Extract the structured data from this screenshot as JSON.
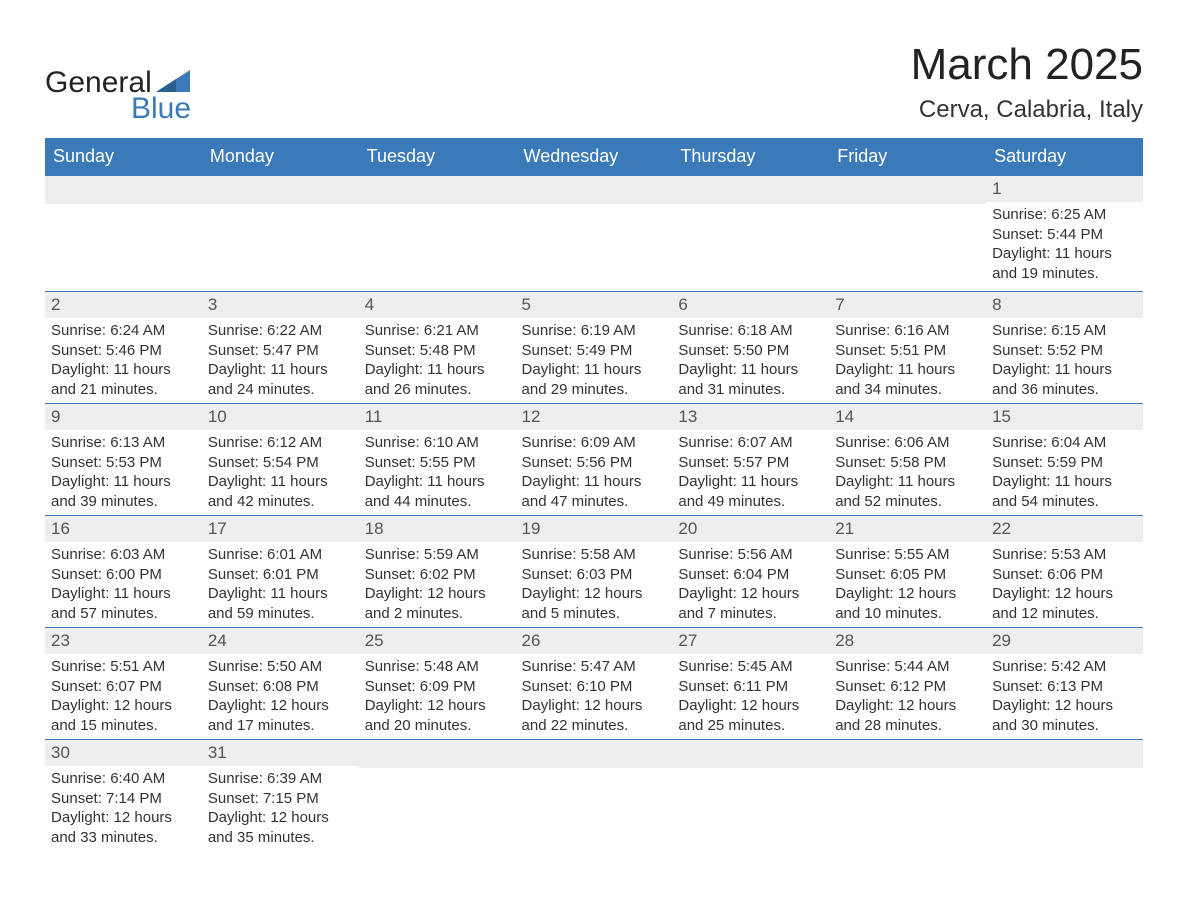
{
  "logo": {
    "text1": "General",
    "text2": "Blue"
  },
  "title": "March 2025",
  "location": "Cerva, Calabria, Italy",
  "colors": {
    "header_bg": "#3b7ab8",
    "header_text": "#ffffff",
    "daynum_bg": "#eeeeee",
    "row_divider": "#3b7ab8",
    "body_text": "#333333",
    "title_text": "#222222",
    "logo_blue": "#3b7ab8"
  },
  "fonts": {
    "title_size_pt": 33,
    "location_size_pt": 18,
    "header_size_pt": 14,
    "body_size_pt": 11
  },
  "day_headers": [
    "Sunday",
    "Monday",
    "Tuesday",
    "Wednesday",
    "Thursday",
    "Friday",
    "Saturday"
  ],
  "weeks": [
    [
      {
        "empty": true
      },
      {
        "empty": true
      },
      {
        "empty": true
      },
      {
        "empty": true
      },
      {
        "empty": true
      },
      {
        "empty": true
      },
      {
        "num": "1",
        "sunrise": "Sunrise: 6:25 AM",
        "sunset": "Sunset: 5:44 PM",
        "daylight1": "Daylight: 11 hours",
        "daylight2": "and 19 minutes."
      }
    ],
    [
      {
        "num": "2",
        "sunrise": "Sunrise: 6:24 AM",
        "sunset": "Sunset: 5:46 PM",
        "daylight1": "Daylight: 11 hours",
        "daylight2": "and 21 minutes."
      },
      {
        "num": "3",
        "sunrise": "Sunrise: 6:22 AM",
        "sunset": "Sunset: 5:47 PM",
        "daylight1": "Daylight: 11 hours",
        "daylight2": "and 24 minutes."
      },
      {
        "num": "4",
        "sunrise": "Sunrise: 6:21 AM",
        "sunset": "Sunset: 5:48 PM",
        "daylight1": "Daylight: 11 hours",
        "daylight2": "and 26 minutes."
      },
      {
        "num": "5",
        "sunrise": "Sunrise: 6:19 AM",
        "sunset": "Sunset: 5:49 PM",
        "daylight1": "Daylight: 11 hours",
        "daylight2": "and 29 minutes."
      },
      {
        "num": "6",
        "sunrise": "Sunrise: 6:18 AM",
        "sunset": "Sunset: 5:50 PM",
        "daylight1": "Daylight: 11 hours",
        "daylight2": "and 31 minutes."
      },
      {
        "num": "7",
        "sunrise": "Sunrise: 6:16 AM",
        "sunset": "Sunset: 5:51 PM",
        "daylight1": "Daylight: 11 hours",
        "daylight2": "and 34 minutes."
      },
      {
        "num": "8",
        "sunrise": "Sunrise: 6:15 AM",
        "sunset": "Sunset: 5:52 PM",
        "daylight1": "Daylight: 11 hours",
        "daylight2": "and 36 minutes."
      }
    ],
    [
      {
        "num": "9",
        "sunrise": "Sunrise: 6:13 AM",
        "sunset": "Sunset: 5:53 PM",
        "daylight1": "Daylight: 11 hours",
        "daylight2": "and 39 minutes."
      },
      {
        "num": "10",
        "sunrise": "Sunrise: 6:12 AM",
        "sunset": "Sunset: 5:54 PM",
        "daylight1": "Daylight: 11 hours",
        "daylight2": "and 42 minutes."
      },
      {
        "num": "11",
        "sunrise": "Sunrise: 6:10 AM",
        "sunset": "Sunset: 5:55 PM",
        "daylight1": "Daylight: 11 hours",
        "daylight2": "and 44 minutes."
      },
      {
        "num": "12",
        "sunrise": "Sunrise: 6:09 AM",
        "sunset": "Sunset: 5:56 PM",
        "daylight1": "Daylight: 11 hours",
        "daylight2": "and 47 minutes."
      },
      {
        "num": "13",
        "sunrise": "Sunrise: 6:07 AM",
        "sunset": "Sunset: 5:57 PM",
        "daylight1": "Daylight: 11 hours",
        "daylight2": "and 49 minutes."
      },
      {
        "num": "14",
        "sunrise": "Sunrise: 6:06 AM",
        "sunset": "Sunset: 5:58 PM",
        "daylight1": "Daylight: 11 hours",
        "daylight2": "and 52 minutes."
      },
      {
        "num": "15",
        "sunrise": "Sunrise: 6:04 AM",
        "sunset": "Sunset: 5:59 PM",
        "daylight1": "Daylight: 11 hours",
        "daylight2": "and 54 minutes."
      }
    ],
    [
      {
        "num": "16",
        "sunrise": "Sunrise: 6:03 AM",
        "sunset": "Sunset: 6:00 PM",
        "daylight1": "Daylight: 11 hours",
        "daylight2": "and 57 minutes."
      },
      {
        "num": "17",
        "sunrise": "Sunrise: 6:01 AM",
        "sunset": "Sunset: 6:01 PM",
        "daylight1": "Daylight: 11 hours",
        "daylight2": "and 59 minutes."
      },
      {
        "num": "18",
        "sunrise": "Sunrise: 5:59 AM",
        "sunset": "Sunset: 6:02 PM",
        "daylight1": "Daylight: 12 hours",
        "daylight2": "and 2 minutes."
      },
      {
        "num": "19",
        "sunrise": "Sunrise: 5:58 AM",
        "sunset": "Sunset: 6:03 PM",
        "daylight1": "Daylight: 12 hours",
        "daylight2": "and 5 minutes."
      },
      {
        "num": "20",
        "sunrise": "Sunrise: 5:56 AM",
        "sunset": "Sunset: 6:04 PM",
        "daylight1": "Daylight: 12 hours",
        "daylight2": "and 7 minutes."
      },
      {
        "num": "21",
        "sunrise": "Sunrise: 5:55 AM",
        "sunset": "Sunset: 6:05 PM",
        "daylight1": "Daylight: 12 hours",
        "daylight2": "and 10 minutes."
      },
      {
        "num": "22",
        "sunrise": "Sunrise: 5:53 AM",
        "sunset": "Sunset: 6:06 PM",
        "daylight1": "Daylight: 12 hours",
        "daylight2": "and 12 minutes."
      }
    ],
    [
      {
        "num": "23",
        "sunrise": "Sunrise: 5:51 AM",
        "sunset": "Sunset: 6:07 PM",
        "daylight1": "Daylight: 12 hours",
        "daylight2": "and 15 minutes."
      },
      {
        "num": "24",
        "sunrise": "Sunrise: 5:50 AM",
        "sunset": "Sunset: 6:08 PM",
        "daylight1": "Daylight: 12 hours",
        "daylight2": "and 17 minutes."
      },
      {
        "num": "25",
        "sunrise": "Sunrise: 5:48 AM",
        "sunset": "Sunset: 6:09 PM",
        "daylight1": "Daylight: 12 hours",
        "daylight2": "and 20 minutes."
      },
      {
        "num": "26",
        "sunrise": "Sunrise: 5:47 AM",
        "sunset": "Sunset: 6:10 PM",
        "daylight1": "Daylight: 12 hours",
        "daylight2": "and 22 minutes."
      },
      {
        "num": "27",
        "sunrise": "Sunrise: 5:45 AM",
        "sunset": "Sunset: 6:11 PM",
        "daylight1": "Daylight: 12 hours",
        "daylight2": "and 25 minutes."
      },
      {
        "num": "28",
        "sunrise": "Sunrise: 5:44 AM",
        "sunset": "Sunset: 6:12 PM",
        "daylight1": "Daylight: 12 hours",
        "daylight2": "and 28 minutes."
      },
      {
        "num": "29",
        "sunrise": "Sunrise: 5:42 AM",
        "sunset": "Sunset: 6:13 PM",
        "daylight1": "Daylight: 12 hours",
        "daylight2": "and 30 minutes."
      }
    ],
    [
      {
        "num": "30",
        "sunrise": "Sunrise: 6:40 AM",
        "sunset": "Sunset: 7:14 PM",
        "daylight1": "Daylight: 12 hours",
        "daylight2": "and 33 minutes."
      },
      {
        "num": "31",
        "sunrise": "Sunrise: 6:39 AM",
        "sunset": "Sunset: 7:15 PM",
        "daylight1": "Daylight: 12 hours",
        "daylight2": "and 35 minutes."
      },
      {
        "empty": true
      },
      {
        "empty": true
      },
      {
        "empty": true
      },
      {
        "empty": true
      },
      {
        "empty": true
      }
    ]
  ]
}
